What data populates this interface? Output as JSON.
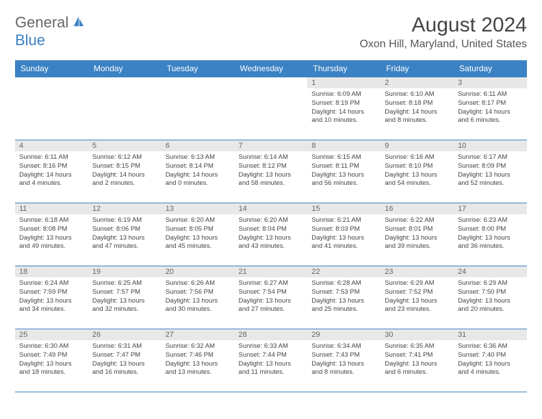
{
  "logo": {
    "general": "General",
    "blue": "Blue"
  },
  "title": "August 2024",
  "location": "Oxon Hill, Maryland, United States",
  "colors": {
    "header_bg": "#3b82c4",
    "header_text": "#ffffff",
    "daynum_bg": "#e8e8e8",
    "border": "#3b82c4",
    "body_text": "#444444"
  },
  "day_headers": [
    "Sunday",
    "Monday",
    "Tuesday",
    "Wednesday",
    "Thursday",
    "Friday",
    "Saturday"
  ],
  "weeks": [
    [
      null,
      null,
      null,
      null,
      {
        "n": "1",
        "sr": "Sunrise: 6:09 AM",
        "ss": "Sunset: 8:19 PM",
        "dl": "Daylight: 14 hours and 10 minutes."
      },
      {
        "n": "2",
        "sr": "Sunrise: 6:10 AM",
        "ss": "Sunset: 8:18 PM",
        "dl": "Daylight: 14 hours and 8 minutes."
      },
      {
        "n": "3",
        "sr": "Sunrise: 6:11 AM",
        "ss": "Sunset: 8:17 PM",
        "dl": "Daylight: 14 hours and 6 minutes."
      }
    ],
    [
      {
        "n": "4",
        "sr": "Sunrise: 6:11 AM",
        "ss": "Sunset: 8:16 PM",
        "dl": "Daylight: 14 hours and 4 minutes."
      },
      {
        "n": "5",
        "sr": "Sunrise: 6:12 AM",
        "ss": "Sunset: 8:15 PM",
        "dl": "Daylight: 14 hours and 2 minutes."
      },
      {
        "n": "6",
        "sr": "Sunrise: 6:13 AM",
        "ss": "Sunset: 8:14 PM",
        "dl": "Daylight: 14 hours and 0 minutes."
      },
      {
        "n": "7",
        "sr": "Sunrise: 6:14 AM",
        "ss": "Sunset: 8:12 PM",
        "dl": "Daylight: 13 hours and 58 minutes."
      },
      {
        "n": "8",
        "sr": "Sunrise: 6:15 AM",
        "ss": "Sunset: 8:11 PM",
        "dl": "Daylight: 13 hours and 56 minutes."
      },
      {
        "n": "9",
        "sr": "Sunrise: 6:16 AM",
        "ss": "Sunset: 8:10 PM",
        "dl": "Daylight: 13 hours and 54 minutes."
      },
      {
        "n": "10",
        "sr": "Sunrise: 6:17 AM",
        "ss": "Sunset: 8:09 PM",
        "dl": "Daylight: 13 hours and 52 minutes."
      }
    ],
    [
      {
        "n": "11",
        "sr": "Sunrise: 6:18 AM",
        "ss": "Sunset: 8:08 PM",
        "dl": "Daylight: 13 hours and 49 minutes."
      },
      {
        "n": "12",
        "sr": "Sunrise: 6:19 AM",
        "ss": "Sunset: 8:06 PM",
        "dl": "Daylight: 13 hours and 47 minutes."
      },
      {
        "n": "13",
        "sr": "Sunrise: 6:20 AM",
        "ss": "Sunset: 8:05 PM",
        "dl": "Daylight: 13 hours and 45 minutes."
      },
      {
        "n": "14",
        "sr": "Sunrise: 6:20 AM",
        "ss": "Sunset: 8:04 PM",
        "dl": "Daylight: 13 hours and 43 minutes."
      },
      {
        "n": "15",
        "sr": "Sunrise: 6:21 AM",
        "ss": "Sunset: 8:03 PM",
        "dl": "Daylight: 13 hours and 41 minutes."
      },
      {
        "n": "16",
        "sr": "Sunrise: 6:22 AM",
        "ss": "Sunset: 8:01 PM",
        "dl": "Daylight: 13 hours and 39 minutes."
      },
      {
        "n": "17",
        "sr": "Sunrise: 6:23 AM",
        "ss": "Sunset: 8:00 PM",
        "dl": "Daylight: 13 hours and 36 minutes."
      }
    ],
    [
      {
        "n": "18",
        "sr": "Sunrise: 6:24 AM",
        "ss": "Sunset: 7:59 PM",
        "dl": "Daylight: 13 hours and 34 minutes."
      },
      {
        "n": "19",
        "sr": "Sunrise: 6:25 AM",
        "ss": "Sunset: 7:57 PM",
        "dl": "Daylight: 13 hours and 32 minutes."
      },
      {
        "n": "20",
        "sr": "Sunrise: 6:26 AM",
        "ss": "Sunset: 7:56 PM",
        "dl": "Daylight: 13 hours and 30 minutes."
      },
      {
        "n": "21",
        "sr": "Sunrise: 6:27 AM",
        "ss": "Sunset: 7:54 PM",
        "dl": "Daylight: 13 hours and 27 minutes."
      },
      {
        "n": "22",
        "sr": "Sunrise: 6:28 AM",
        "ss": "Sunset: 7:53 PM",
        "dl": "Daylight: 13 hours and 25 minutes."
      },
      {
        "n": "23",
        "sr": "Sunrise: 6:29 AM",
        "ss": "Sunset: 7:52 PM",
        "dl": "Daylight: 13 hours and 23 minutes."
      },
      {
        "n": "24",
        "sr": "Sunrise: 6:29 AM",
        "ss": "Sunset: 7:50 PM",
        "dl": "Daylight: 13 hours and 20 minutes."
      }
    ],
    [
      {
        "n": "25",
        "sr": "Sunrise: 6:30 AM",
        "ss": "Sunset: 7:49 PM",
        "dl": "Daylight: 13 hours and 18 minutes."
      },
      {
        "n": "26",
        "sr": "Sunrise: 6:31 AM",
        "ss": "Sunset: 7:47 PM",
        "dl": "Daylight: 13 hours and 16 minutes."
      },
      {
        "n": "27",
        "sr": "Sunrise: 6:32 AM",
        "ss": "Sunset: 7:46 PM",
        "dl": "Daylight: 13 hours and 13 minutes."
      },
      {
        "n": "28",
        "sr": "Sunrise: 6:33 AM",
        "ss": "Sunset: 7:44 PM",
        "dl": "Daylight: 13 hours and 11 minutes."
      },
      {
        "n": "29",
        "sr": "Sunrise: 6:34 AM",
        "ss": "Sunset: 7:43 PM",
        "dl": "Daylight: 13 hours and 8 minutes."
      },
      {
        "n": "30",
        "sr": "Sunrise: 6:35 AM",
        "ss": "Sunset: 7:41 PM",
        "dl": "Daylight: 13 hours and 6 minutes."
      },
      {
        "n": "31",
        "sr": "Sunrise: 6:36 AM",
        "ss": "Sunset: 7:40 PM",
        "dl": "Daylight: 13 hours and 4 minutes."
      }
    ]
  ]
}
